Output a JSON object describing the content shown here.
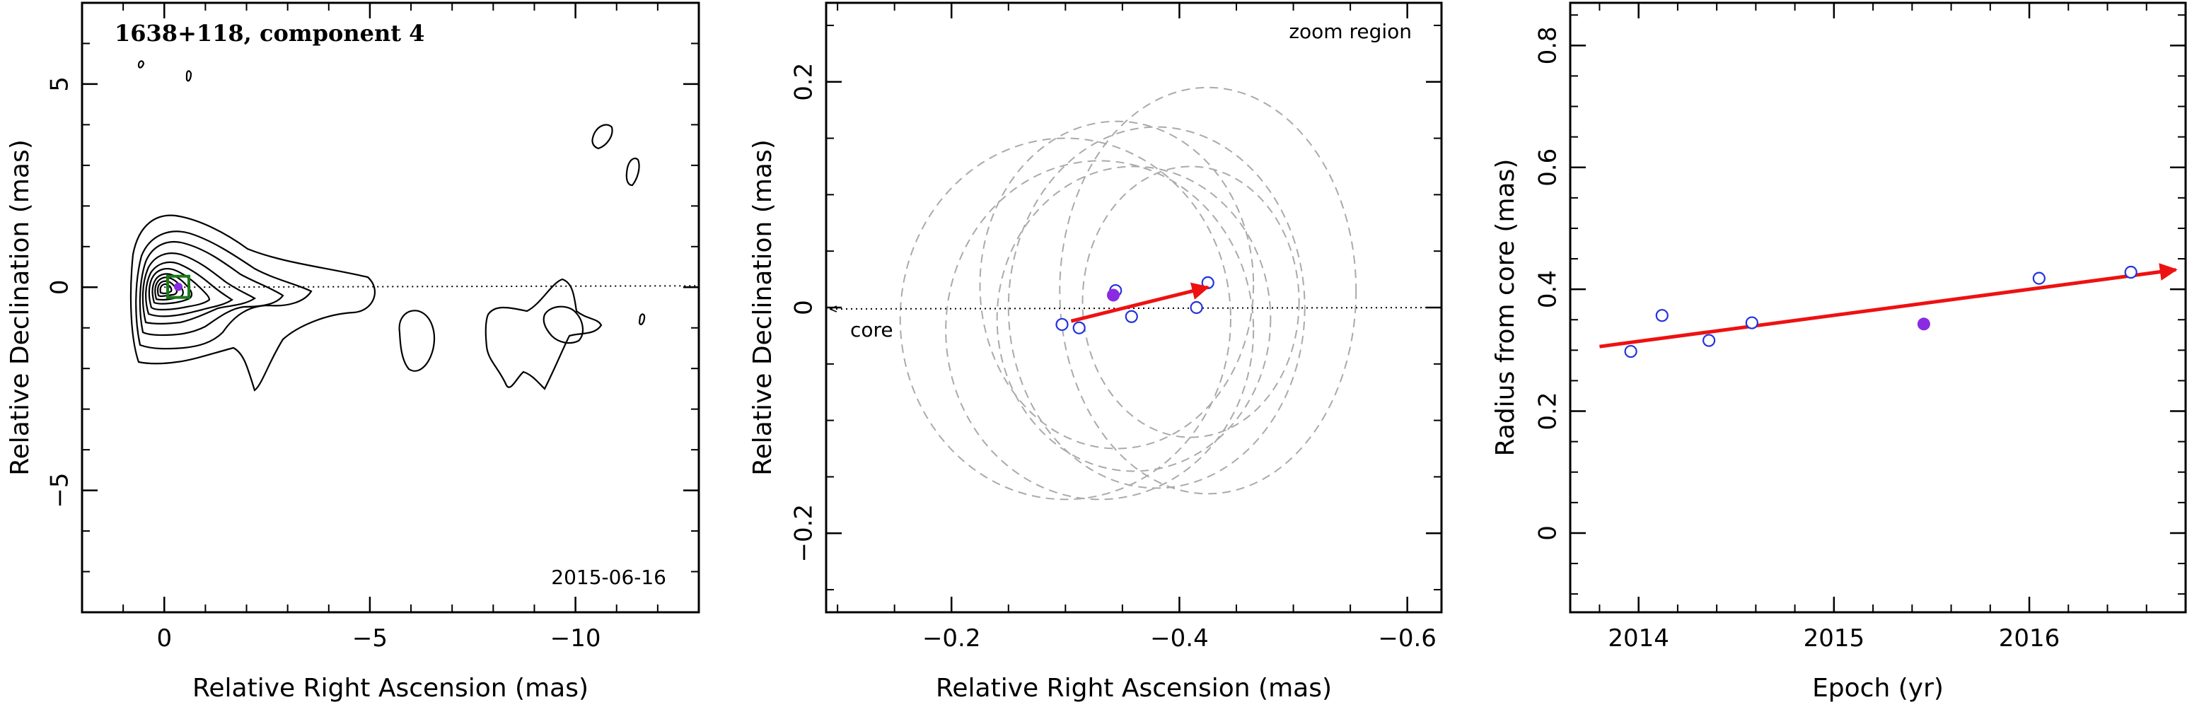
{
  "chart_data": [
    {
      "type": "contour",
      "title": "1638+118, component 4",
      "date_label": "2015-06-16",
      "xlabel": "Relative Right Ascension (mas)",
      "ylabel": "Relative Declination (mas)",
      "xlim": [
        2,
        -13
      ],
      "ylim": [
        -8,
        7
      ],
      "xticks": [
        0,
        -5,
        -10
      ],
      "xtick_labels": [
        "0",
        "−5",
        "−10"
      ],
      "yticks": [
        5,
        0,
        -5
      ],
      "ytick_labels": [
        "5",
        "0",
        "−5"
      ],
      "jet_axis_y": 0,
      "component_position": [
        -0.34,
        0.01
      ],
      "colors": {
        "contour": "#000000",
        "box": "#1a7a1a",
        "component": "#8a2be2"
      }
    },
    {
      "type": "scatter",
      "note": "zoom region",
      "core_label": "core",
      "xlabel": "Relative Right Ascension (mas)",
      "ylabel": "Relative Declination (mas)",
      "xlim": [
        -0.09,
        -0.63
      ],
      "ylim": [
        -0.27,
        0.27
      ],
      "xticks": [
        -0.2,
        -0.4,
        -0.6
      ],
      "xtick_labels": [
        "−0.2",
        "−0.4",
        "−0.6"
      ],
      "yticks": [
        0.2,
        0,
        -0.2
      ],
      "ytick_labels": [
        "0.2",
        "0",
        "−0.2"
      ],
      "points_open": [
        [
          -0.297,
          -0.015
        ],
        [
          -0.312,
          -0.018
        ],
        [
          -0.344,
          0.015
        ],
        [
          -0.358,
          -0.008
        ],
        [
          -0.415,
          0.0
        ],
        [
          -0.425,
          0.022
        ]
      ],
      "points_filled": [
        [
          -0.342,
          0.011
        ]
      ],
      "ellipses": [
        {
          "cx": -0.3,
          "cy": -0.01,
          "rx": 0.145,
          "ry": 0.16
        },
        {
          "cx": -0.33,
          "cy": -0.02,
          "rx": 0.135,
          "ry": 0.15
        },
        {
          "cx": -0.345,
          "cy": 0.02,
          "rx": 0.12,
          "ry": 0.145
        },
        {
          "cx": -0.36,
          "cy": -0.01,
          "rx": 0.12,
          "ry": 0.135
        },
        {
          "cx": -0.38,
          "cy": 0.0,
          "rx": 0.13,
          "ry": 0.16
        },
        {
          "cx": -0.41,
          "cy": 0.005,
          "rx": 0.095,
          "ry": 0.12
        },
        {
          "cx": -0.425,
          "cy": 0.015,
          "rx": 0.13,
          "ry": 0.18
        }
      ],
      "motion_vector": {
        "from": [
          -0.305,
          -0.012
        ],
        "to": [
          -0.425,
          0.018
        ]
      },
      "colors": {
        "ellipse": "#aaaaaa",
        "point": "#2233dd",
        "filled": "#8a2be2",
        "arrow": "#ee1111"
      }
    },
    {
      "type": "scatter",
      "xlabel": "Epoch (yr)",
      "ylabel": "Radius from core (mas)",
      "xlim": [
        2013.65,
        2016.8
      ],
      "ylim": [
        -0.13,
        0.87
      ],
      "xticks": [
        2014,
        2015,
        2016
      ],
      "xtick_labels": [
        "2014",
        "2015",
        "2016"
      ],
      "yticks": [
        0,
        0.2,
        0.4,
        0.6,
        0.8
      ],
      "ytick_labels": [
        "0",
        "0.2",
        "0.4",
        "0.6",
        "0.8"
      ],
      "points_open": [
        [
          2013.96,
          0.298
        ],
        [
          2014.12,
          0.357
        ],
        [
          2014.36,
          0.316
        ],
        [
          2014.58,
          0.345
        ],
        [
          2016.05,
          0.418
        ],
        [
          2016.52,
          0.428
        ]
      ],
      "points_filled": [
        [
          2015.46,
          0.343
        ]
      ],
      "fit_line": {
        "from": [
          2013.8,
          0.306
        ],
        "to": [
          2016.75,
          0.432
        ]
      },
      "colors": {
        "point": "#2233dd",
        "filled": "#8a2be2",
        "line": "#ee1111"
      }
    }
  ]
}
